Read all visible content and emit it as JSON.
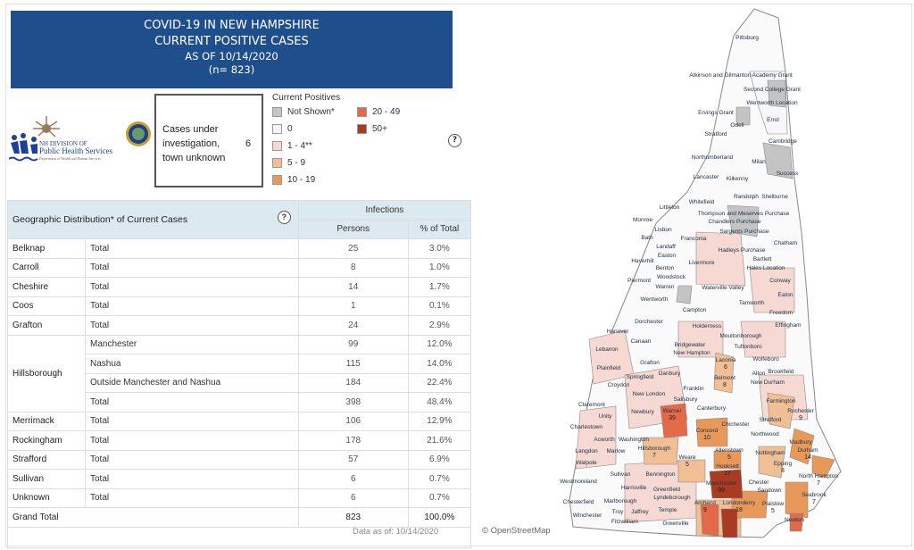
{
  "header": {
    "line1": "COVID-19 IN NEW HAMPSHIRE",
    "line2": "CURRENT POSITIVE CASES",
    "line3": "AS OF 10/14/2020",
    "line4": "(n= 823)"
  },
  "logo": {
    "text1": "NH DIVISION OF",
    "text2": "Public Health Services",
    "text3": "Department of Health and Human Services"
  },
  "investigation": {
    "label": "Cases under investigation, town unknown",
    "value": "6"
  },
  "legend": {
    "title": "Current Positives",
    "items": [
      {
        "label": "Not Shown*",
        "color": "#c4c4c4"
      },
      {
        "label": "0",
        "color": "#f7f7f7"
      },
      {
        "label": "1 - 4**",
        "color": "#f6d9d2"
      },
      {
        "label": "5 - 9",
        "color": "#f0bf95"
      },
      {
        "label": "10 - 19",
        "color": "#e8995a"
      },
      {
        "label": "20 - 49",
        "color": "#e26a48"
      },
      {
        "label": "50+",
        "color": "#a83b22"
      }
    ]
  },
  "table": {
    "title": "Geographic Distribution* of Current Cases",
    "group_header": "Infections",
    "col_persons": "Persons",
    "col_pct": "% of Total",
    "rows": [
      {
        "county": "Belknap",
        "sub": "Total",
        "persons": "25",
        "pct": "3.0%"
      },
      {
        "county": "Carroll",
        "sub": "Total",
        "persons": "8",
        "pct": "1.0%"
      },
      {
        "county": "Cheshire",
        "sub": "Total",
        "persons": "14",
        "pct": "1.7%"
      },
      {
        "county": "Coos",
        "sub": "Total",
        "persons": "1",
        "pct": "0.1%"
      },
      {
        "county": "Grafton",
        "sub": "Total",
        "persons": "24",
        "pct": "2.9%"
      },
      {
        "county": "Hillsborough",
        "sub": "Manchester",
        "persons": "99",
        "pct": "12.0%"
      },
      {
        "county": "",
        "sub": "Nashua",
        "persons": "115",
        "pct": "14.0%"
      },
      {
        "county": "",
        "sub": "Outside Manchester and Nashua",
        "persons": "184",
        "pct": "22.4%"
      },
      {
        "county": "",
        "sub": "Total",
        "persons": "398",
        "pct": "48.4%"
      },
      {
        "county": "Merrimack",
        "sub": "Total",
        "persons": "106",
        "pct": "12.9%"
      },
      {
        "county": "Rockingham",
        "sub": "Total",
        "persons": "178",
        "pct": "21.6%"
      },
      {
        "county": "Strafford",
        "sub": "Total",
        "persons": "57",
        "pct": "6.9%"
      },
      {
        "county": "Sullivan",
        "sub": "Total",
        "persons": "6",
        "pct": "0.7%"
      },
      {
        "county": "Unknown",
        "sub": "Total",
        "persons": "6",
        "pct": "0.7%"
      }
    ],
    "grand_total": {
      "label": "Grand Total",
      "persons": "823",
      "pct": "100.0%"
    }
  },
  "footer": {
    "data_as_of": "Data as of:  10/14/2020",
    "osm": "© OpenStreetMap"
  },
  "map": {
    "towns": [
      {
        "name": "Pittsburg",
        "cases": ""
      },
      {
        "name": "Atkinson and Gilmanton Academy Grant",
        "cases": ""
      },
      {
        "name": "Second College Grant",
        "cases": ""
      },
      {
        "name": "Wentworth Location",
        "cases": ""
      },
      {
        "name": "Errol",
        "cases": ""
      },
      {
        "name": "Ervings Grant",
        "cases": ""
      },
      {
        "name": "Odell",
        "cases": ""
      },
      {
        "name": "Stratford",
        "cases": ""
      },
      {
        "name": "Cambridge",
        "cases": ""
      },
      {
        "name": "Northumberland",
        "cases": ""
      },
      {
        "name": "Milan",
        "cases": ""
      },
      {
        "name": "Success",
        "cases": ""
      },
      {
        "name": "Lancaster",
        "cases": ""
      },
      {
        "name": "Kilkenny",
        "cases": ""
      },
      {
        "name": "Randolph",
        "cases": ""
      },
      {
        "name": "Shelburne",
        "cases": ""
      },
      {
        "name": "Whitefield",
        "cases": ""
      },
      {
        "name": "Littleton",
        "cases": ""
      },
      {
        "name": "Thompson and Meserves Purchase",
        "cases": ""
      },
      {
        "name": "Chandlers Purchase",
        "cases": ""
      },
      {
        "name": "Monroe",
        "cases": ""
      },
      {
        "name": "Lisbon",
        "cases": ""
      },
      {
        "name": "Sargents Purchase",
        "cases": ""
      },
      {
        "name": "Chatham",
        "cases": ""
      },
      {
        "name": "Bath",
        "cases": ""
      },
      {
        "name": "Landaff",
        "cases": ""
      },
      {
        "name": "Franconia",
        "cases": ""
      },
      {
        "name": "Hadleys Purchase",
        "cases": ""
      },
      {
        "name": "Easton",
        "cases": ""
      },
      {
        "name": "Bartlett",
        "cases": ""
      },
      {
        "name": "Haverhill",
        "cases": ""
      },
      {
        "name": "Livermore",
        "cases": ""
      },
      {
        "name": "Hales Location",
        "cases": ""
      },
      {
        "name": "Benton",
        "cases": ""
      },
      {
        "name": "Conway",
        "cases": ""
      },
      {
        "name": "Piermont",
        "cases": ""
      },
      {
        "name": "Woodstock",
        "cases": ""
      },
      {
        "name": "Eaton",
        "cases": ""
      },
      {
        "name": "Warren",
        "cases": ""
      },
      {
        "name": "Waterville Valley",
        "cases": ""
      },
      {
        "name": "Wentworth",
        "cases": ""
      },
      {
        "name": "Tamworth",
        "cases": ""
      },
      {
        "name": "Campton",
        "cases": ""
      },
      {
        "name": "Freedom",
        "cases": ""
      },
      {
        "name": "Dorchester",
        "cases": ""
      },
      {
        "name": "Effingham",
        "cases": ""
      },
      {
        "name": "Holderness",
        "cases": ""
      },
      {
        "name": "Hanover",
        "cases": ""
      },
      {
        "name": "Moultonborough",
        "cases": ""
      },
      {
        "name": "Canaan",
        "cases": ""
      },
      {
        "name": "Bridgewater",
        "cases": ""
      },
      {
        "name": "Tuftonboro",
        "cases": ""
      },
      {
        "name": "Lebanon",
        "cases": ""
      },
      {
        "name": "New Hampton",
        "cases": ""
      },
      {
        "name": "Wolfeboro",
        "cases": ""
      },
      {
        "name": "Laconia",
        "cases": "6"
      },
      {
        "name": "Grafton",
        "cases": ""
      },
      {
        "name": "Brookfield",
        "cases": ""
      },
      {
        "name": "Plainfield",
        "cases": ""
      },
      {
        "name": "Springfield",
        "cases": ""
      },
      {
        "name": "Danbury",
        "cases": ""
      },
      {
        "name": "Belmont",
        "cases": "8"
      },
      {
        "name": "Alton",
        "cases": ""
      },
      {
        "name": "Croydon",
        "cases": ""
      },
      {
        "name": "New Durham",
        "cases": ""
      },
      {
        "name": "Franklin",
        "cases": ""
      },
      {
        "name": "New London",
        "cases": ""
      },
      {
        "name": "Salisbury",
        "cases": ""
      },
      {
        "name": "Farmington",
        "cases": ""
      },
      {
        "name": "Claremont",
        "cases": ""
      },
      {
        "name": "Newbury",
        "cases": ""
      },
      {
        "name": "Warner",
        "cases": "39"
      },
      {
        "name": "Canterbury",
        "cases": ""
      },
      {
        "name": "Rochester",
        "cases": "9"
      },
      {
        "name": "Unity",
        "cases": ""
      },
      {
        "name": "Strafford",
        "cases": ""
      },
      {
        "name": "Charlestown",
        "cases": ""
      },
      {
        "name": "Chichester",
        "cases": ""
      },
      {
        "name": "Concord",
        "cases": "10"
      },
      {
        "name": "Northwood",
        "cases": ""
      },
      {
        "name": "Acworth",
        "cases": ""
      },
      {
        "name": "Washington",
        "cases": ""
      },
      {
        "name": "Hillsborough",
        "cases": "7"
      },
      {
        "name": "Madbury",
        "cases": ""
      },
      {
        "name": "Langdon",
        "cases": ""
      },
      {
        "name": "Allenstown",
        "cases": "5"
      },
      {
        "name": "Durham",
        "cases": "14"
      },
      {
        "name": "Marlow",
        "cases": ""
      },
      {
        "name": "Nottingham",
        "cases": ""
      },
      {
        "name": "Walpole",
        "cases": ""
      },
      {
        "name": "Weare",
        "cases": "5"
      },
      {
        "name": "Hooksett",
        "cases": "17"
      },
      {
        "name": "Epping",
        "cases": "8"
      },
      {
        "name": "Sullivan",
        "cases": ""
      },
      {
        "name": "Bennington",
        "cases": ""
      },
      {
        "name": "North Hampton",
        "cases": "7"
      },
      {
        "name": "Westmoreland",
        "cases": ""
      },
      {
        "name": "Manchester",
        "cases": "99"
      },
      {
        "name": "Chester",
        "cases": ""
      },
      {
        "name": "Harrisville",
        "cases": ""
      },
      {
        "name": "Greenfield",
        "cases": ""
      },
      {
        "name": "Sandown",
        "cases": ""
      },
      {
        "name": "Seabrook",
        "cases": "7"
      },
      {
        "name": "Chesterfield",
        "cases": ""
      },
      {
        "name": "Marlborough",
        "cases": ""
      },
      {
        "name": "Lyndeborough",
        "cases": ""
      },
      {
        "name": "Amherst",
        "cases": "9"
      },
      {
        "name": "Londonderry",
        "cases": "18"
      },
      {
        "name": "Plaistow",
        "cases": "5"
      },
      {
        "name": "Newton",
        "cases": ""
      },
      {
        "name": "Troy",
        "cases": ""
      },
      {
        "name": "Jaffrey",
        "cases": ""
      },
      {
        "name": "Temple",
        "cases": ""
      },
      {
        "name": "Winchester",
        "cases": ""
      },
      {
        "name": "Fitzwilliam",
        "cases": ""
      },
      {
        "name": "Greenville",
        "cases": ""
      }
    ]
  }
}
